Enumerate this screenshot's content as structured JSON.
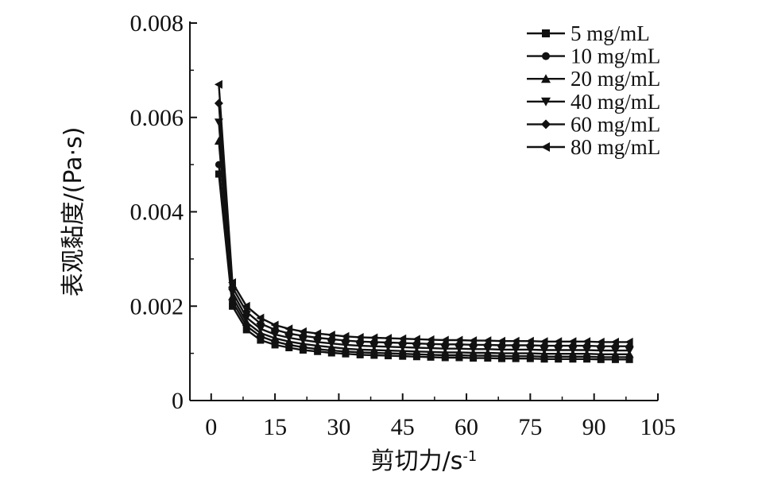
{
  "chart_data": {
    "type": "line",
    "title": "",
    "xlabel": "剪切力/s",
    "xlabel_sup": "-1",
    "ylabel": "表观黏度/(Pa·s)",
    "xlim": [
      -5,
      105
    ],
    "ylim": [
      0,
      0.008
    ],
    "xticks": [
      0,
      15,
      30,
      45,
      60,
      75,
      90,
      105
    ],
    "xtick_labels": [
      "0",
      "15",
      "30",
      "45",
      "60",
      "75",
      "90",
      "105"
    ],
    "yticks": [
      0,
      0.002,
      0.004,
      0.006,
      0.008
    ],
    "ytick_labels": [
      "0",
      "0.002",
      "0.004",
      "0.006",
      "0.008"
    ],
    "grid": false,
    "legend_position": "top-right",
    "x": [
      1.8,
      5,
      8.3,
      11.6,
      15,
      18.3,
      21.6,
      25,
      28.3,
      31.6,
      35,
      38.3,
      41.6,
      45,
      48.3,
      51.6,
      55,
      58.3,
      61.6,
      65,
      68.3,
      71.6,
      75,
      78.3,
      81.6,
      85,
      88.3,
      91.6,
      95,
      98.3
    ],
    "series": [
      {
        "name": "5 mg/mL",
        "marker": "square",
        "values": [
          0.0048,
          0.002,
          0.0015,
          0.00128,
          0.00118,
          0.00112,
          0.00107,
          0.00104,
          0.00101,
          0.00099,
          0.00097,
          0.00096,
          0.00095,
          0.00094,
          0.00093,
          0.00092,
          0.00091,
          0.00091,
          0.0009,
          0.0009,
          0.00089,
          0.00089,
          0.00089,
          0.00088,
          0.00088,
          0.00088,
          0.00088,
          0.00087,
          0.00087,
          0.00087
        ]
      },
      {
        "name": "10 mg/mL",
        "marker": "circle",
        "values": [
          0.005,
          0.0021,
          0.00158,
          0.00136,
          0.00125,
          0.00118,
          0.00113,
          0.00109,
          0.00106,
          0.00104,
          0.00102,
          0.00101,
          0.001,
          0.00099,
          0.00098,
          0.00097,
          0.00096,
          0.00096,
          0.00095,
          0.00095,
          0.00094,
          0.00094,
          0.00094,
          0.00093,
          0.00093,
          0.00093,
          0.00093,
          0.00092,
          0.00092,
          0.00092
        ]
      },
      {
        "name": "20 mg/mL",
        "marker": "triangle-up",
        "values": [
          0.0055,
          0.0022,
          0.00166,
          0.00143,
          0.00132,
          0.00125,
          0.0012,
          0.00116,
          0.00113,
          0.0011,
          0.00108,
          0.00107,
          0.00106,
          0.00105,
          0.00104,
          0.00103,
          0.00102,
          0.00102,
          0.00101,
          0.00101,
          0.001,
          0.001,
          0.001,
          0.00099,
          0.00099,
          0.00099,
          0.00099,
          0.00098,
          0.00098,
          0.00098
        ]
      },
      {
        "name": "40 mg/mL",
        "marker": "triangle-down",
        "values": [
          0.0059,
          0.0023,
          0.00176,
          0.00152,
          0.0014,
          0.00133,
          0.00128,
          0.00124,
          0.00121,
          0.00118,
          0.00116,
          0.00115,
          0.00114,
          0.00113,
          0.00112,
          0.00111,
          0.0011,
          0.0011,
          0.00109,
          0.00109,
          0.00108,
          0.00108,
          0.00108,
          0.00107,
          0.00107,
          0.00107,
          0.00107,
          0.00106,
          0.00106,
          0.00106
        ]
      },
      {
        "name": "60 mg/mL",
        "marker": "diamond",
        "values": [
          0.0063,
          0.0024,
          0.00188,
          0.00163,
          0.0015,
          0.00142,
          0.00137,
          0.00133,
          0.0013,
          0.00127,
          0.00125,
          0.00124,
          0.00123,
          0.00122,
          0.00121,
          0.0012,
          0.00119,
          0.00119,
          0.00118,
          0.00118,
          0.00117,
          0.00117,
          0.00117,
          0.00116,
          0.00116,
          0.00116,
          0.00116,
          0.00115,
          0.00115,
          0.00115
        ]
      },
      {
        "name": "80 mg/mL",
        "marker": "triangle-left",
        "values": [
          0.0067,
          0.0025,
          0.002,
          0.00175,
          0.0016,
          0.00152,
          0.00146,
          0.00142,
          0.00139,
          0.00136,
          0.00134,
          0.00133,
          0.00132,
          0.00131,
          0.0013,
          0.00129,
          0.00128,
          0.00128,
          0.00127,
          0.00127,
          0.00126,
          0.00126,
          0.00126,
          0.00125,
          0.00125,
          0.00125,
          0.00125,
          0.00124,
          0.00124,
          0.00124
        ]
      }
    ],
    "colors": {
      "line": "#111111",
      "marker": "#111111",
      "axis": "#111111"
    }
  }
}
